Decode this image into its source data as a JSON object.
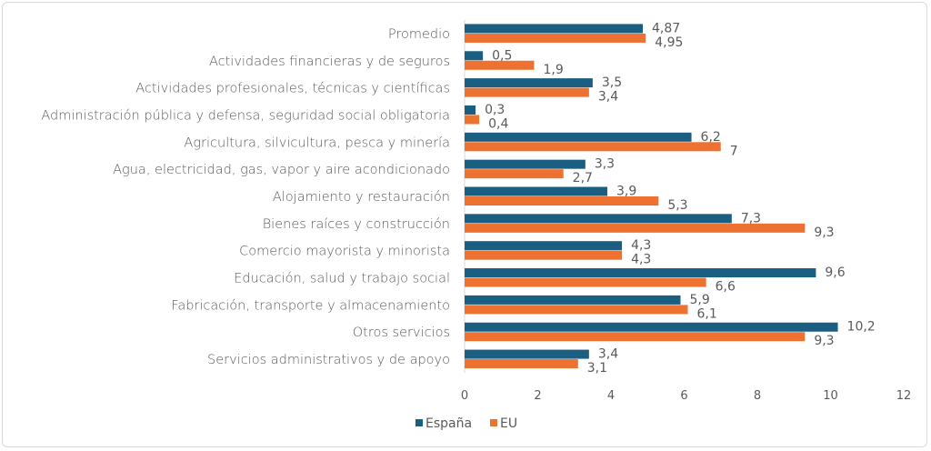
{
  "chart_data": {
    "type": "bar",
    "orientation": "horizontal",
    "title": "",
    "xlabel": "",
    "ylabel": "",
    "categories": [
      "Promedio",
      "Actividades financieras y de seguros",
      "Actividades profesionales, técnicas y científicas",
      "Administración pública y defensa, seguridad social obligatoria",
      "Agricultura, silvicultura, pesca y minería",
      "Agua, electricidad, gas, vapor y aire acondicionado",
      "Alojamiento y restauración",
      "Bienes raíces y construcción",
      "Comercio mayorista y minorista",
      "Educación, salud y  trabajo social",
      "Fabricación, transporte y almacenamiento",
      "Otros servicios",
      "Servicios administrativos y de apoyo"
    ],
    "series": [
      {
        "name": "España",
        "color": "#1a5f82",
        "values": [
          4.87,
          0.5,
          3.5,
          0.3,
          6.2,
          3.3,
          3.9,
          7.3,
          4.3,
          9.6,
          5.9,
          10.2,
          3.4
        ]
      },
      {
        "name": "EU",
        "color": "#ed7232",
        "values": [
          4.95,
          1.9,
          3.4,
          0.4,
          7,
          2.7,
          5.3,
          9.3,
          4.3,
          6.6,
          6.1,
          9.3,
          3.1
        ]
      }
    ],
    "xlim": [
      0,
      12
    ],
    "xticks": [
      0,
      2,
      4,
      6,
      8,
      10,
      12
    ],
    "grid": false,
    "legend_position": "bottom",
    "decimal_separator": ","
  }
}
